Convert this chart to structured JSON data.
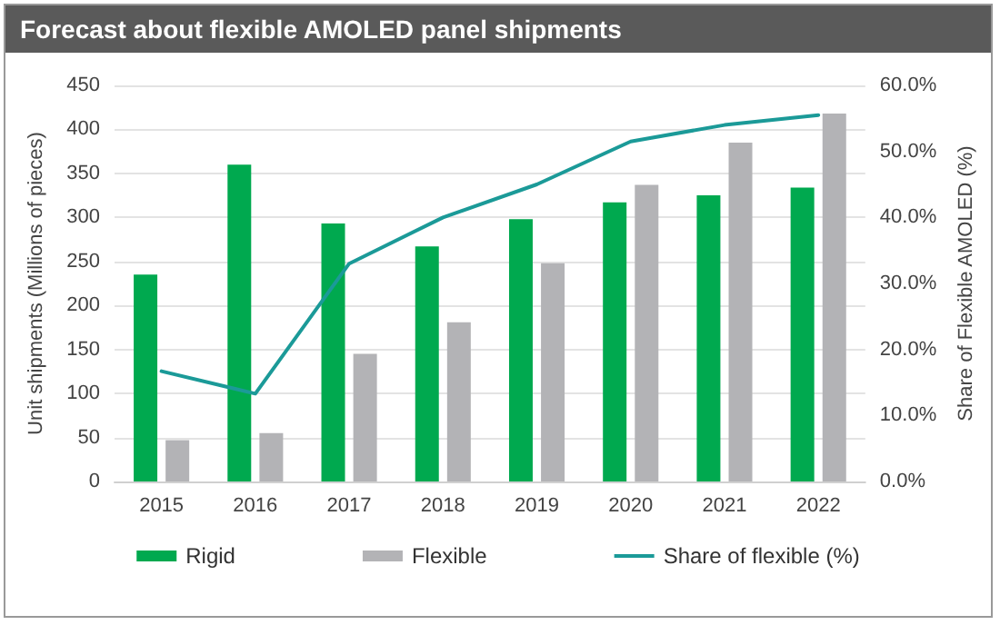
{
  "chart_data": {
    "type": "bar",
    "title": "Forecast about flexible AMOLED panel shipments",
    "categories": [
      "2015",
      "2016",
      "2017",
      "2018",
      "2019",
      "2020",
      "2021",
      "2022"
    ],
    "series": [
      {
        "name": "Rigid",
        "color": "#00a94f",
        "values": [
          235,
          360,
          293,
          267,
          298,
          317,
          325,
          334
        ]
      },
      {
        "name": "Flexible",
        "color": "#b3b3b6",
        "values": [
          47,
          55,
          145,
          181,
          248,
          337,
          385,
          418
        ]
      },
      {
        "name": "Share of flexible (%)",
        "type": "line",
        "axis": "y2",
        "color": "#1b9a98",
        "values": [
          16.7,
          13.3,
          33,
          40,
          45,
          51.5,
          54,
          55.5
        ]
      }
    ],
    "ylabel": "Unit shipments (Millions of pieces)",
    "y2label": "Share of Flexible AMOLED (%)",
    "ylim": [
      0,
      450
    ],
    "yticks": [
      0,
      50,
      100,
      150,
      200,
      250,
      300,
      350,
      400,
      450
    ],
    "y2lim": [
      0,
      60
    ],
    "y2ticks": [
      {
        "value": 0,
        "label": "0.0%"
      },
      {
        "value": 10,
        "label": "10.0%"
      },
      {
        "value": 20,
        "label": "20.0%"
      },
      {
        "value": 30,
        "label": "30.0%"
      },
      {
        "value": 40,
        "label": "40.0%"
      },
      {
        "value": 50,
        "label": "50.0%"
      },
      {
        "value": 60,
        "label": "60.0%"
      }
    ],
    "grid": "y",
    "legend": "bottom",
    "marker": "none",
    "line_style": "solid"
  }
}
